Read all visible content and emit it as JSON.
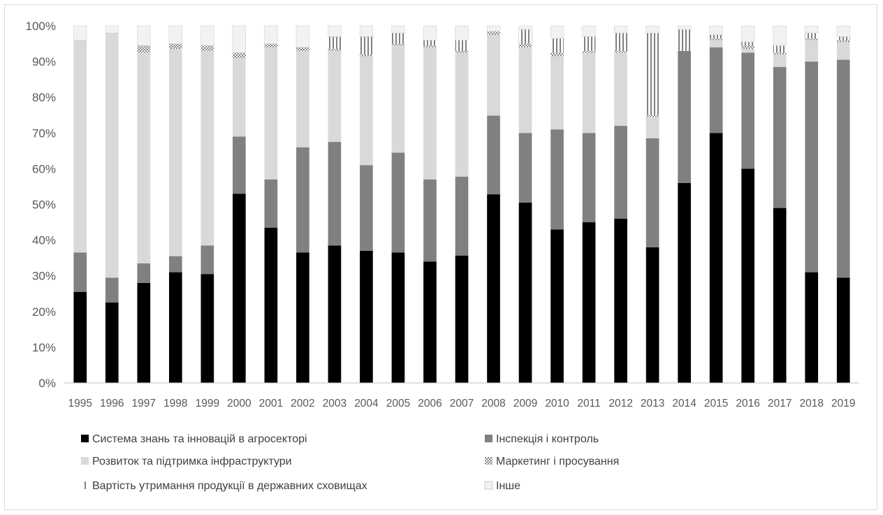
{
  "chart_data": {
    "type": "bar",
    "stacked": true,
    "percent_stacked": true,
    "title": "",
    "xlabel": "",
    "ylabel": "",
    "ylim": [
      0,
      100
    ],
    "yticks": [
      "0%",
      "10%",
      "20%",
      "30%",
      "40%",
      "50%",
      "60%",
      "70%",
      "80%",
      "90%",
      "100%"
    ],
    "grid": false,
    "legend_position": "bottom",
    "categories": [
      "1995",
      "1996",
      "1997",
      "1998",
      "1999",
      "2000",
      "2001",
      "2002",
      "2003",
      "2004",
      "2005",
      "2006",
      "2007",
      "2008",
      "2009",
      "2010",
      "2011",
      "2012",
      "2013",
      "2014",
      "2015",
      "2016",
      "2017",
      "2018",
      "2019"
    ],
    "series": [
      {
        "name": "Система знань та інновацій в агросекторі",
        "color": "#000000",
        "pattern": "solid",
        "values": [
          25.5,
          22.5,
          28,
          31,
          30.5,
          53,
          43.5,
          36.5,
          38.5,
          37,
          36.5,
          34,
          35.5,
          51.5,
          50.5,
          43,
          45,
          46,
          38,
          56,
          70,
          60,
          49,
          31,
          29.5
        ]
      },
      {
        "name": "Інспекція і контроль",
        "color": "#808080",
        "pattern": "solid",
        "values": [
          11,
          7,
          5.5,
          4.5,
          8,
          16,
          13.5,
          29.5,
          29,
          24,
          28,
          23,
          22,
          21.5,
          19.5,
          28,
          25,
          26,
          30.5,
          37,
          24,
          32.5,
          39.5,
          59,
          61
        ]
      },
      {
        "name": "Розвиток та підтримка інфраструктури",
        "color": "#d9d9d9",
        "pattern": "solid",
        "values": [
          59.5,
          68.5,
          59,
          58,
          54.5,
          22,
          37,
          27,
          25.5,
          30.5,
          30,
          37,
          34.5,
          22,
          24,
          20.5,
          22.5,
          20.5,
          6,
          0,
          2,
          1,
          3.5,
          6,
          5
        ]
      },
      {
        "name": "Маркетинг і просування",
        "color": "#808080",
        "pattern": "dots",
        "values": [
          0,
          0,
          2,
          1.5,
          1.5,
          1.5,
          1,
          1,
          0.5,
          0.5,
          0.5,
          0.5,
          0.5,
          1,
          1,
          1,
          0.5,
          0.5,
          0.5,
          0,
          0.5,
          1,
          0.5,
          0.5,
          0.5
        ]
      },
      {
        "name": "Вартість утримання продукції в державних сховищах",
        "color": "#808080",
        "pattern": "vertical-stripes",
        "values": [
          0,
          0,
          0,
          0,
          0,
          0,
          0,
          0,
          3.5,
          5,
          3,
          1.5,
          3,
          0,
          4,
          4,
          4,
          5,
          23,
          6,
          1,
          1,
          2,
          1.5,
          1
        ]
      },
      {
        "name": "Інше",
        "color": "#f2f2f2",
        "pattern": "solid",
        "values": [
          4,
          2,
          5.5,
          5,
          5.5,
          7.5,
          5,
          6,
          3,
          3,
          2,
          4,
          4,
          1.5,
          1,
          3.5,
          3,
          2,
          2,
          1,
          2.5,
          4.5,
          5.5,
          2,
          3
        ]
      }
    ]
  }
}
